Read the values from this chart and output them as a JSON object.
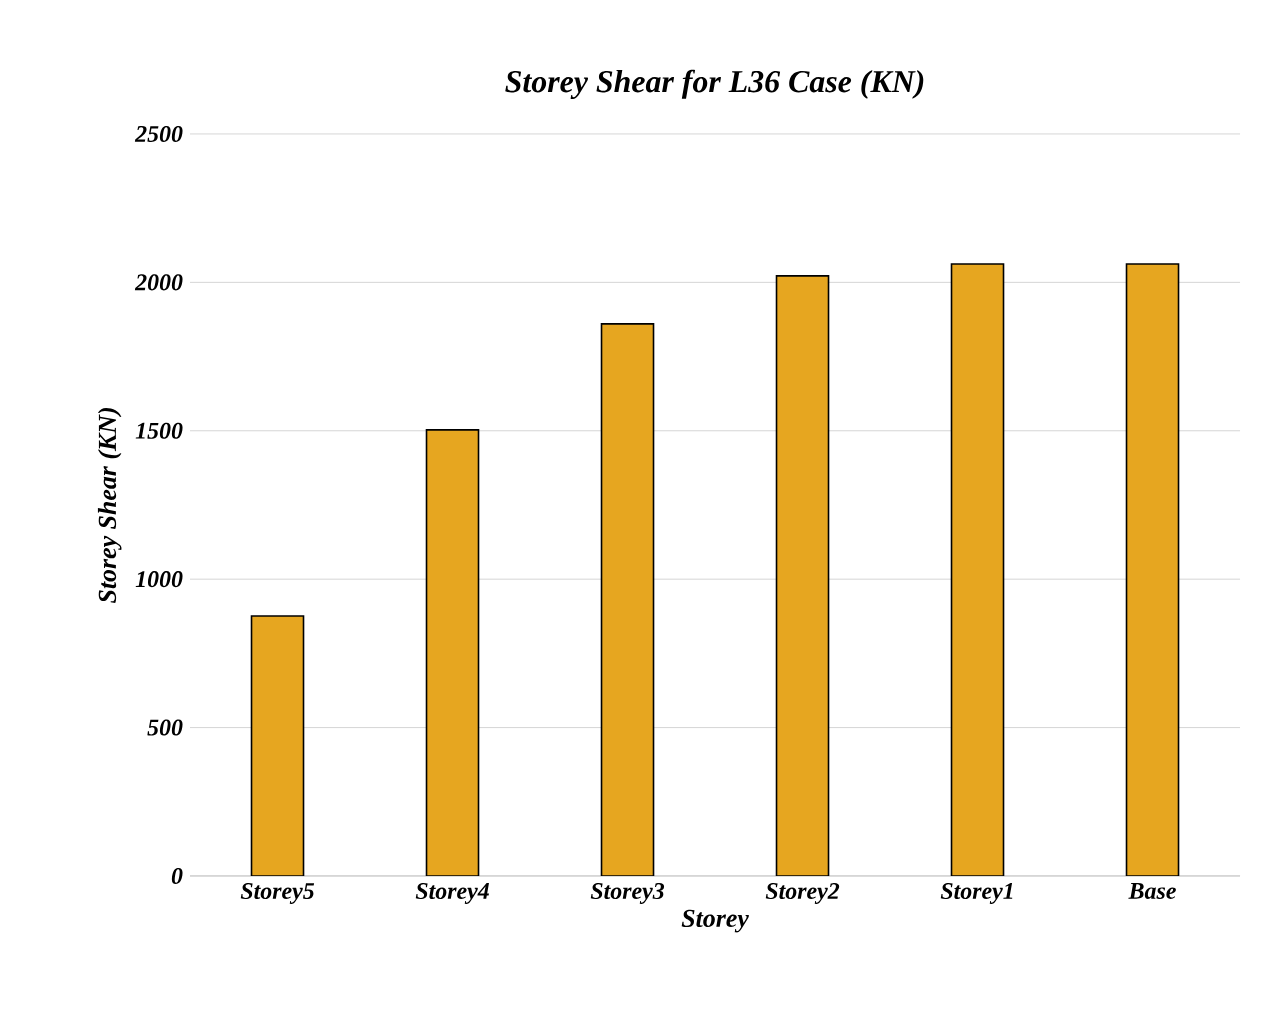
{
  "chart_data": {
    "type": "bar",
    "title": "Storey Shear for L36 Case (KN)",
    "xlabel": "Storey",
    "ylabel": "Storey Shear (KN)",
    "categories": [
      "Storey5",
      "Storey4",
      "Storey3",
      "Storey2",
      "Storey1",
      "Base"
    ],
    "values": [
      876,
      1503,
      1860,
      2022,
      2062,
      2062
    ],
    "color": "#e6a620",
    "ylim": [
      0,
      2500
    ],
    "yticks": [
      0,
      500,
      1000,
      1500,
      2000,
      2500
    ],
    "grid": "y"
  }
}
